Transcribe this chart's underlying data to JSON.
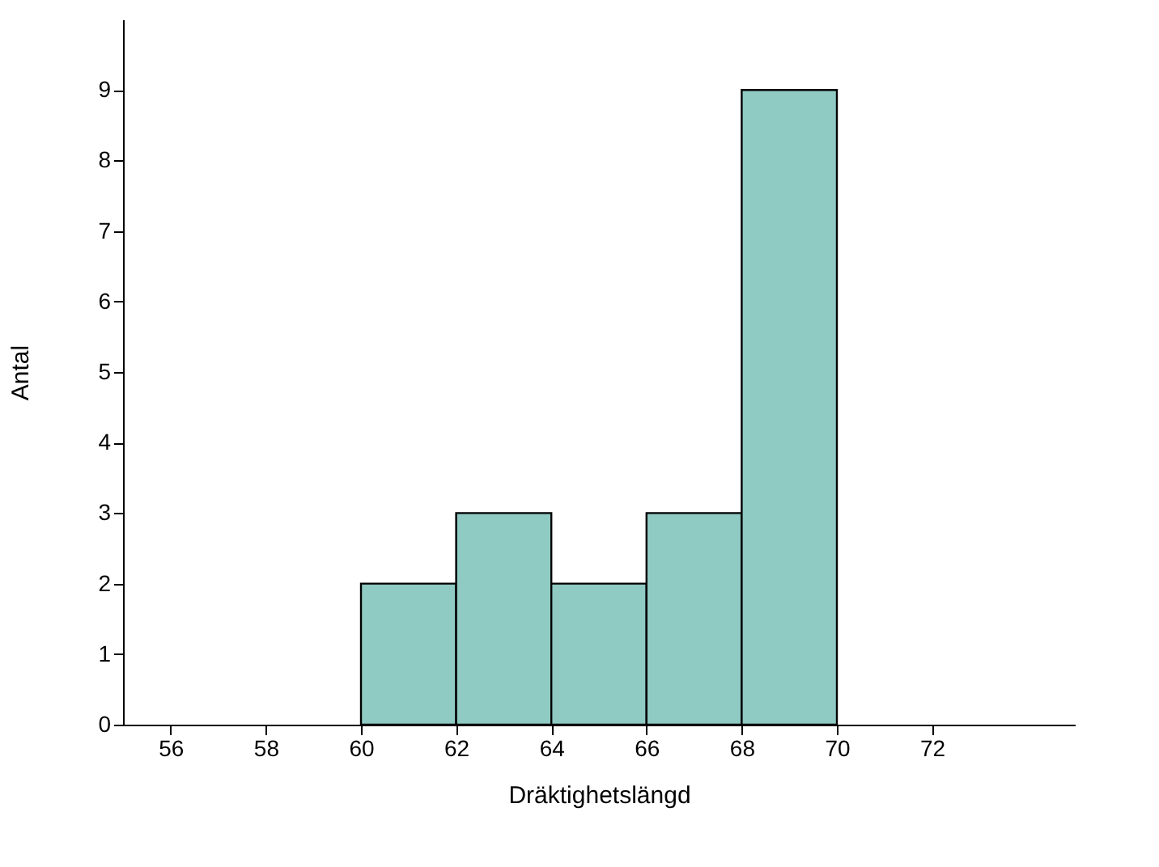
{
  "chart_data": {
    "type": "histogram",
    "xlabel": "Dräktighetslängd",
    "ylabel": "Antal",
    "bins": [
      60,
      62,
      64,
      66,
      68,
      70
    ],
    "values": [
      2,
      3,
      2,
      3,
      9
    ],
    "color": "#8fcac3",
    "xlim": [
      55,
      75
    ],
    "xticks": [
      56,
      58,
      60,
      62,
      64,
      66,
      68,
      70,
      72
    ],
    "ylim": [
      0,
      10
    ],
    "yticks": [
      0,
      1,
      2,
      3,
      4,
      5,
      6,
      7,
      8,
      9
    ],
    "grid": false
  }
}
